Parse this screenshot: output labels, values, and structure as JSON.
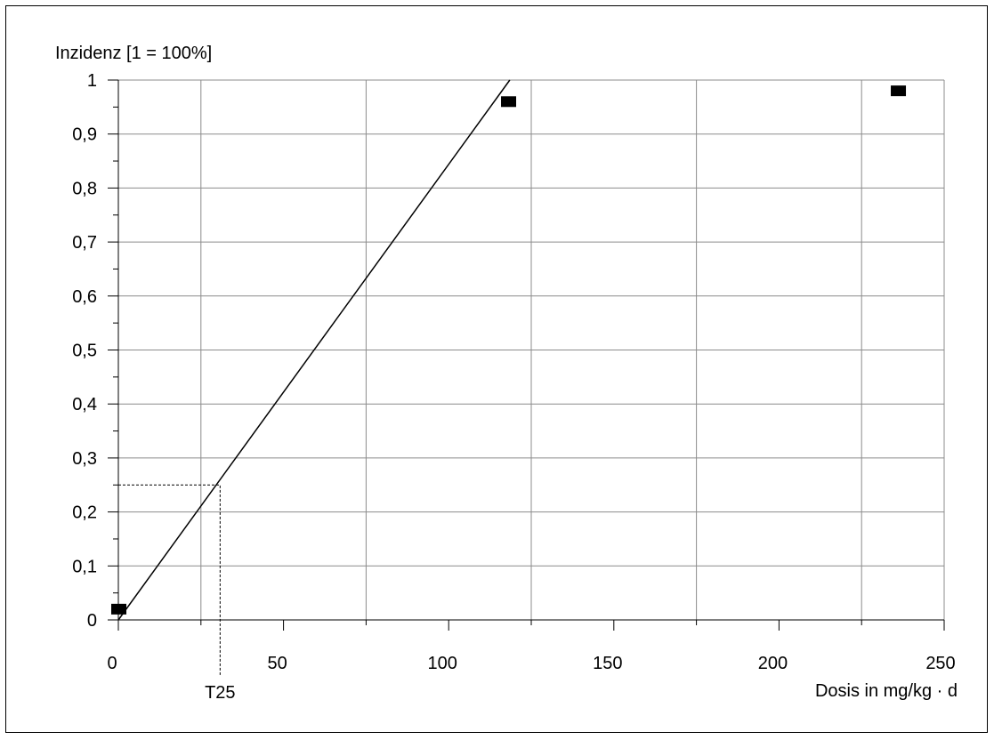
{
  "chart_data": {
    "type": "scatter",
    "ylabel": "Inzidenz [1 = 100%]",
    "xlabel": "Dosis in mg/kg · d",
    "xlim": [
      0,
      250
    ],
    "ylim": [
      0,
      1
    ],
    "x_ticks": [
      0,
      50,
      100,
      150,
      200,
      250
    ],
    "x_tick_labels": [
      "0",
      "50",
      "100",
      "150",
      "200",
      "250"
    ],
    "x_minor_ticks": [
      25,
      75,
      125,
      175,
      225
    ],
    "y_ticks": [
      0,
      0.1,
      0.2,
      0.3,
      0.4,
      0.5,
      0.6,
      0.7,
      0.8,
      0.9,
      1
    ],
    "y_tick_labels": [
      "0",
      "0,1",
      "0,2",
      "0,3",
      "0,4",
      "0,5",
      "0,6",
      "0,7",
      "0,8",
      "0,9",
      "1"
    ],
    "y_minor_ticks": [
      0.05,
      0.15,
      0.25,
      0.35,
      0.45,
      0.55,
      0.65,
      0.75,
      0.85,
      0.95
    ],
    "grid": true,
    "grid_x": [
      25,
      75,
      125,
      175,
      225
    ],
    "grid_y": [
      0.1,
      0.2,
      0.3,
      0.4,
      0.5,
      0.6,
      0.7,
      0.8,
      0.9,
      1
    ],
    "points": [
      {
        "x": 0,
        "y": 0.02
      },
      {
        "x": 118,
        "y": 0.96
      },
      {
        "x": 236,
        "y": 0.98
      }
    ],
    "fit_line": {
      "from": [
        0,
        0
      ],
      "to": [
        118.5,
        1
      ]
    },
    "t25": {
      "label": "T25",
      "x": 30.8,
      "y": 0.25
    }
  }
}
